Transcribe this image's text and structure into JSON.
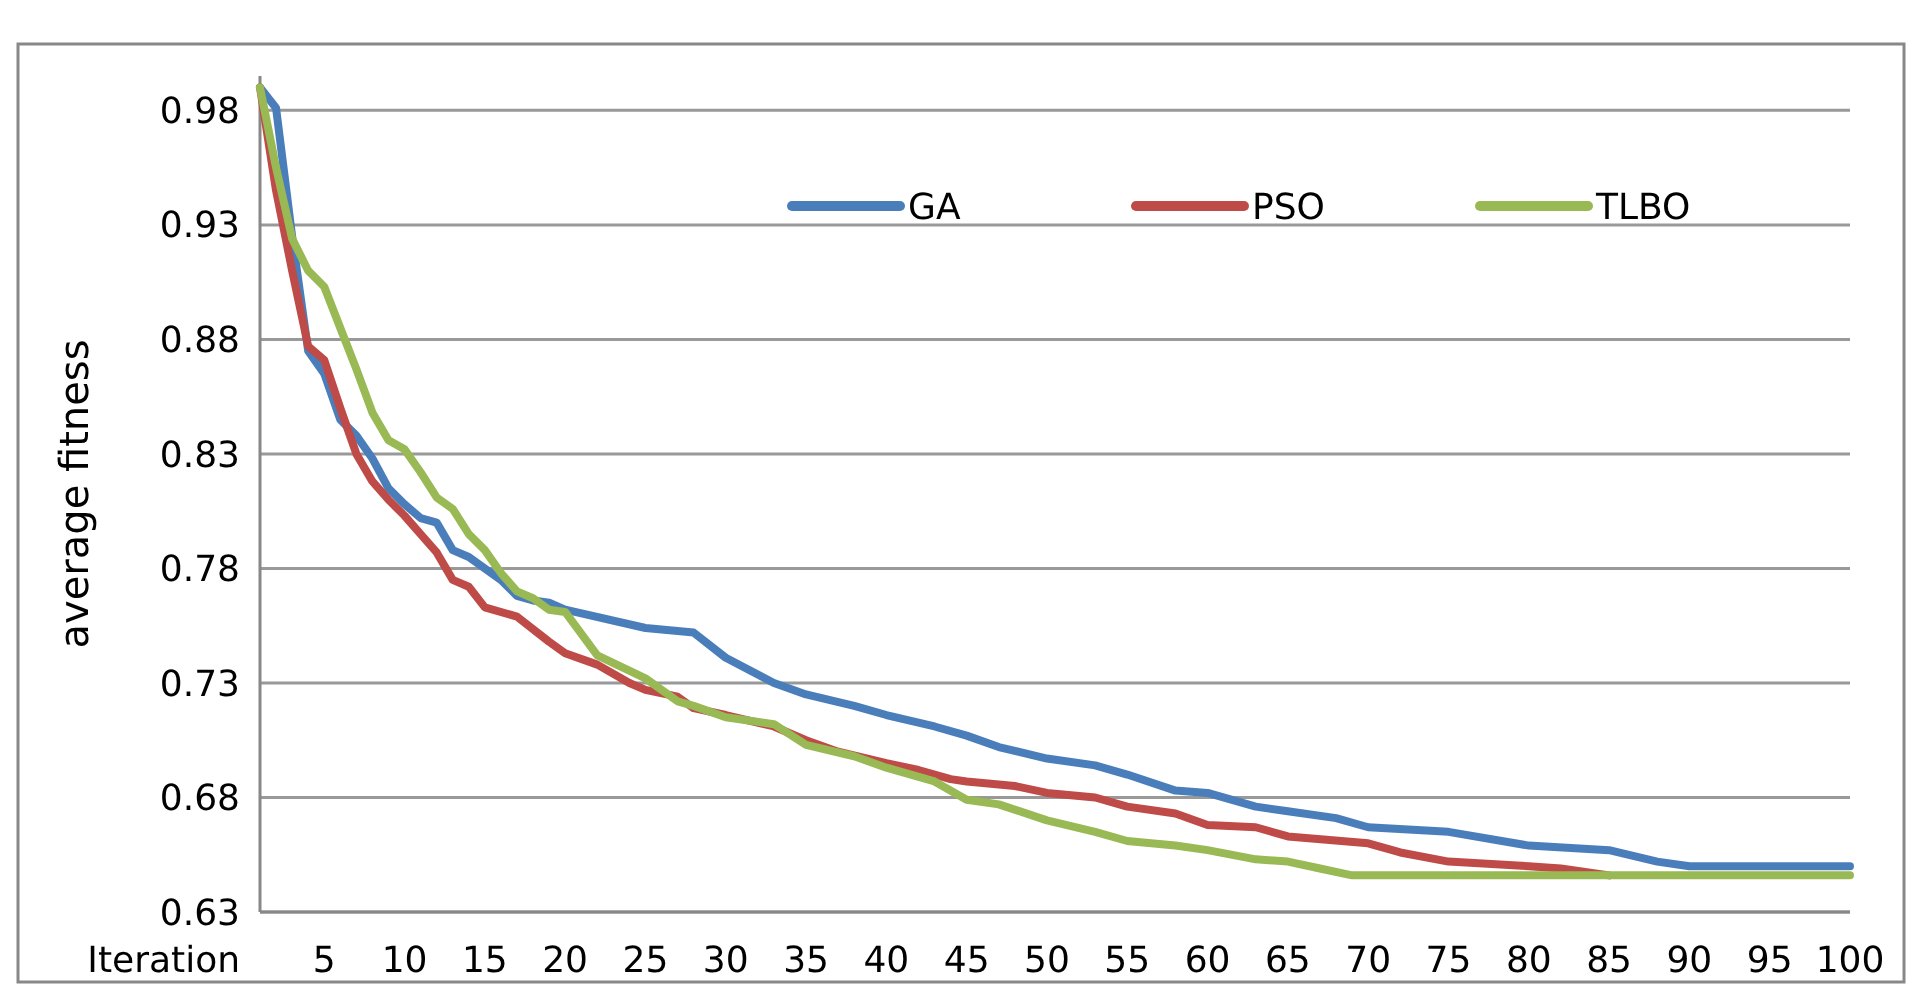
{
  "chart_data": {
    "type": "line",
    "xlabel": "Iteration",
    "ylabel": "average fitness",
    "xlim": [
      1,
      100
    ],
    "xticks": [
      5,
      10,
      15,
      20,
      25,
      30,
      35,
      40,
      45,
      50,
      55,
      60,
      65,
      70,
      75,
      80,
      85,
      90,
      95,
      100
    ],
    "ylim": [
      0.63,
      0.995
    ],
    "yticks": [
      0.63,
      0.68,
      0.73,
      0.78,
      0.83,
      0.88,
      0.93,
      0.98
    ],
    "grid": "y",
    "legend": "top",
    "marker": "none",
    "line_style": "solid",
    "series": [
      {
        "name": "GA",
        "color": "#4a7ebb",
        "x": [
          1,
          2,
          3,
          4,
          5,
          6,
          7,
          8,
          9,
          10,
          11,
          12,
          13,
          14,
          15,
          16,
          17,
          18,
          19,
          20,
          25,
          28,
          30,
          33,
          35,
          38,
          40,
          43,
          45,
          47,
          50,
          53,
          55,
          58,
          60,
          63,
          65,
          68,
          70,
          75,
          80,
          85,
          88,
          90,
          100
        ],
        "values": [
          0.99,
          0.981,
          0.925,
          0.875,
          0.865,
          0.845,
          0.838,
          0.828,
          0.815,
          0.808,
          0.802,
          0.8,
          0.788,
          0.785,
          0.78,
          0.775,
          0.768,
          0.766,
          0.765,
          0.762,
          0.754,
          0.752,
          0.741,
          0.73,
          0.725,
          0.72,
          0.716,
          0.711,
          0.707,
          0.702,
          0.697,
          0.694,
          0.69,
          0.683,
          0.682,
          0.676,
          0.674,
          0.671,
          0.667,
          0.665,
          0.659,
          0.657,
          0.652,
          0.65,
          0.65
        ]
      },
      {
        "name": "PSO",
        "color": "#be4b48",
        "x": [
          1,
          2,
          3,
          4,
          5,
          6,
          7,
          8,
          9,
          10,
          11,
          12,
          13,
          14,
          15,
          17,
          19,
          20,
          22,
          24,
          25,
          27,
          28,
          30,
          33,
          35,
          37,
          40,
          42,
          44,
          45,
          48,
          50,
          53,
          55,
          58,
          60,
          63,
          65,
          70,
          72,
          75,
          80,
          82,
          85
        ],
        "values": [
          0.99,
          0.945,
          0.91,
          0.877,
          0.871,
          0.85,
          0.83,
          0.818,
          0.81,
          0.803,
          0.795,
          0.787,
          0.775,
          0.772,
          0.763,
          0.759,
          0.748,
          0.743,
          0.738,
          0.73,
          0.727,
          0.724,
          0.719,
          0.716,
          0.711,
          0.705,
          0.7,
          0.695,
          0.692,
          0.688,
          0.687,
          0.685,
          0.682,
          0.68,
          0.676,
          0.673,
          0.668,
          0.667,
          0.663,
          0.66,
          0.656,
          0.652,
          0.65,
          0.649,
          0.646
        ]
      },
      {
        "name": "TLBO",
        "color": "#98b954",
        "x": [
          1,
          2,
          3,
          4,
          5,
          6,
          7,
          8,
          9,
          10,
          11,
          12,
          13,
          14,
          15,
          16,
          17,
          18,
          19,
          20,
          22,
          25,
          27,
          28,
          30,
          33,
          35,
          38,
          40,
          43,
          45,
          47,
          50,
          53,
          55,
          58,
          60,
          63,
          65,
          67,
          69,
          100
        ],
        "values": [
          0.99,
          0.955,
          0.924,
          0.91,
          0.903,
          0.885,
          0.867,
          0.848,
          0.836,
          0.832,
          0.822,
          0.811,
          0.806,
          0.795,
          0.788,
          0.778,
          0.77,
          0.767,
          0.762,
          0.761,
          0.742,
          0.732,
          0.722,
          0.72,
          0.715,
          0.712,
          0.703,
          0.698,
          0.693,
          0.687,
          0.679,
          0.677,
          0.67,
          0.665,
          0.661,
          0.659,
          0.657,
          0.653,
          0.652,
          0.649,
          0.646,
          0.646
        ]
      }
    ]
  }
}
